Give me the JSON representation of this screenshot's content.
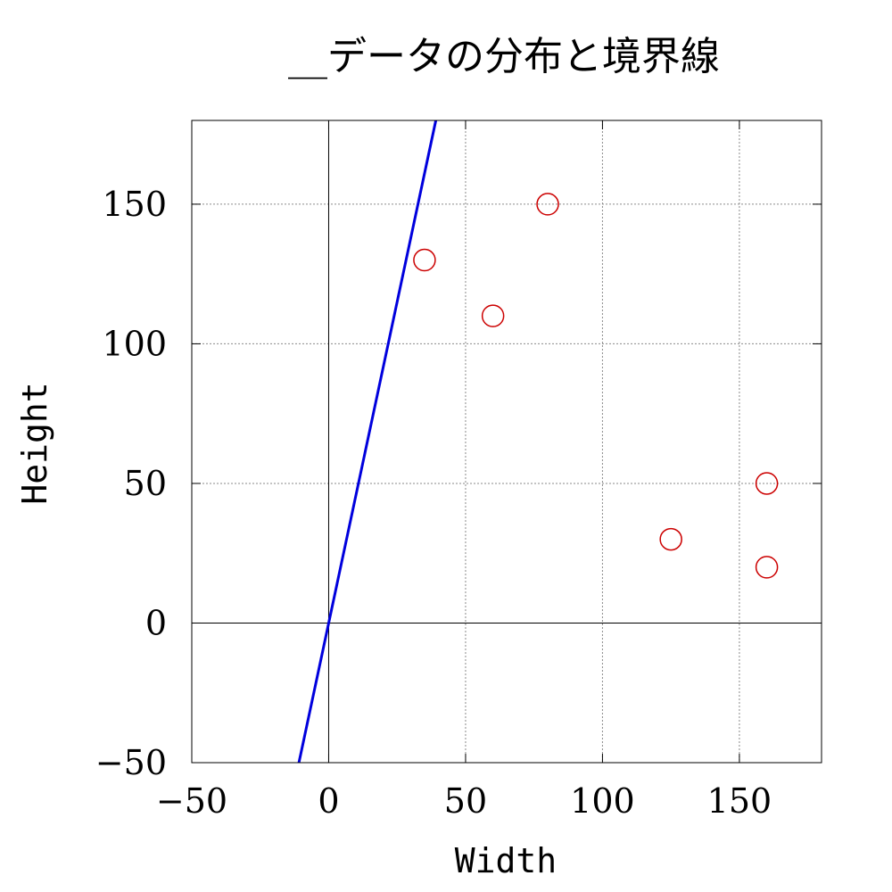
{
  "chart_data": {
    "type": "scatter",
    "title": "__データの分布と境界線",
    "xlabel": "Width",
    "ylabel": "Height",
    "xlim": [
      -50,
      180
    ],
    "ylim": [
      -50,
      180
    ],
    "xticks": [
      -50,
      0,
      50,
      100,
      150
    ],
    "yticks": [
      -50,
      0,
      50,
      100,
      150
    ],
    "xtick_labels": [
      "−50",
      "0",
      "50",
      "100",
      "150"
    ],
    "ytick_labels": [
      "−50",
      "0",
      "50",
      "100",
      "150"
    ],
    "grid": true,
    "zero_axes": true,
    "series": [
      {
        "type": "scatter",
        "marker": "circle-open",
        "color": "#cc0000",
        "points": [
          {
            "x": 35,
            "y": 130
          },
          {
            "x": 60,
            "y": 110
          },
          {
            "x": 80,
            "y": 150
          },
          {
            "x": 125,
            "y": 30
          },
          {
            "x": 160,
            "y": 50
          },
          {
            "x": 160,
            "y": 20
          }
        ]
      },
      {
        "type": "line",
        "color": "#0000dd",
        "slope": 4.6,
        "intercept": 0
      }
    ]
  }
}
